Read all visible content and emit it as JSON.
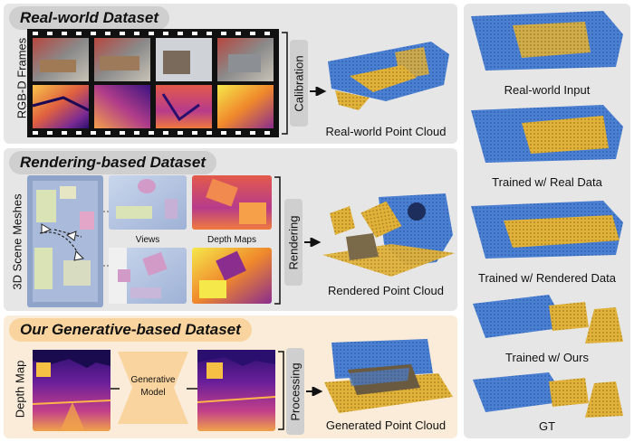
{
  "real": {
    "title": "Real-world Dataset",
    "frames_label": "RGB-D Frames",
    "step_label": "Calibration",
    "output_label": "Real-world Point Cloud"
  },
  "render": {
    "title": "Rendering-based Dataset",
    "meshes_label": "3D Scene Meshes",
    "views_label": "Views",
    "depth_label": "Depth Maps",
    "step_label": "Rendering",
    "output_label": "Rendered Point Cloud"
  },
  "gen": {
    "title": "Our Generative-based Dataset",
    "depth_label": "Depth Map",
    "model_label_1": "Generative",
    "model_label_2": "Model",
    "step_label": "Processing",
    "output_label": "Generated Point Cloud"
  },
  "results": {
    "items": [
      {
        "label": "Real-world Input"
      },
      {
        "label": "Trained w/ Real Data"
      },
      {
        "label": "Trained w/ Rendered Data"
      },
      {
        "label": "Trained w/ Ours"
      },
      {
        "label": "GT"
      }
    ]
  },
  "colors": {
    "cloud_blue": "#4a7fd1",
    "cloud_yellow": "#e0b23a",
    "depth_dark": "#2a0f6e",
    "depth_light": "#f8c44a",
    "gen_panel": "#fbecd9",
    "gray_panel": "#e6e6e6"
  }
}
